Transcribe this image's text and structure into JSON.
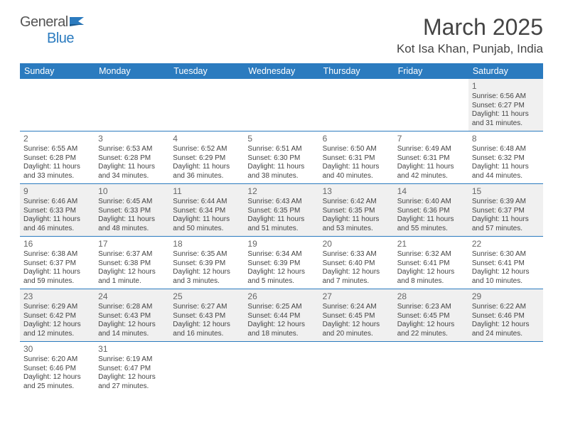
{
  "logo": {
    "textGray": "General",
    "textBlue": "Blue"
  },
  "title": "March 2025",
  "location": "Kot Isa Khan, Punjab, India",
  "headerColor": "#2b7bbf",
  "altRowColor": "#f0f0f0",
  "dayNames": [
    "Sunday",
    "Monday",
    "Tuesday",
    "Wednesday",
    "Thursday",
    "Friday",
    "Saturday"
  ],
  "firstDayIndex": 6,
  "daysInMonth": 31,
  "days": {
    "1": {
      "sunrise": "6:56 AM",
      "sunset": "6:27 PM",
      "daylight": "11 hours and 31 minutes."
    },
    "2": {
      "sunrise": "6:55 AM",
      "sunset": "6:28 PM",
      "daylight": "11 hours and 33 minutes."
    },
    "3": {
      "sunrise": "6:53 AM",
      "sunset": "6:28 PM",
      "daylight": "11 hours and 34 minutes."
    },
    "4": {
      "sunrise": "6:52 AM",
      "sunset": "6:29 PM",
      "daylight": "11 hours and 36 minutes."
    },
    "5": {
      "sunrise": "6:51 AM",
      "sunset": "6:30 PM",
      "daylight": "11 hours and 38 minutes."
    },
    "6": {
      "sunrise": "6:50 AM",
      "sunset": "6:31 PM",
      "daylight": "11 hours and 40 minutes."
    },
    "7": {
      "sunrise": "6:49 AM",
      "sunset": "6:31 PM",
      "daylight": "11 hours and 42 minutes."
    },
    "8": {
      "sunrise": "6:48 AM",
      "sunset": "6:32 PM",
      "daylight": "11 hours and 44 minutes."
    },
    "9": {
      "sunrise": "6:46 AM",
      "sunset": "6:33 PM",
      "daylight": "11 hours and 46 minutes."
    },
    "10": {
      "sunrise": "6:45 AM",
      "sunset": "6:33 PM",
      "daylight": "11 hours and 48 minutes."
    },
    "11": {
      "sunrise": "6:44 AM",
      "sunset": "6:34 PM",
      "daylight": "11 hours and 50 minutes."
    },
    "12": {
      "sunrise": "6:43 AM",
      "sunset": "6:35 PM",
      "daylight": "11 hours and 51 minutes."
    },
    "13": {
      "sunrise": "6:42 AM",
      "sunset": "6:35 PM",
      "daylight": "11 hours and 53 minutes."
    },
    "14": {
      "sunrise": "6:40 AM",
      "sunset": "6:36 PM",
      "daylight": "11 hours and 55 minutes."
    },
    "15": {
      "sunrise": "6:39 AM",
      "sunset": "6:37 PM",
      "daylight": "11 hours and 57 minutes."
    },
    "16": {
      "sunrise": "6:38 AM",
      "sunset": "6:37 PM",
      "daylight": "11 hours and 59 minutes."
    },
    "17": {
      "sunrise": "6:37 AM",
      "sunset": "6:38 PM",
      "daylight": "12 hours and 1 minute."
    },
    "18": {
      "sunrise": "6:35 AM",
      "sunset": "6:39 PM",
      "daylight": "12 hours and 3 minutes."
    },
    "19": {
      "sunrise": "6:34 AM",
      "sunset": "6:39 PM",
      "daylight": "12 hours and 5 minutes."
    },
    "20": {
      "sunrise": "6:33 AM",
      "sunset": "6:40 PM",
      "daylight": "12 hours and 7 minutes."
    },
    "21": {
      "sunrise": "6:32 AM",
      "sunset": "6:41 PM",
      "daylight": "12 hours and 8 minutes."
    },
    "22": {
      "sunrise": "6:30 AM",
      "sunset": "6:41 PM",
      "daylight": "12 hours and 10 minutes."
    },
    "23": {
      "sunrise": "6:29 AM",
      "sunset": "6:42 PM",
      "daylight": "12 hours and 12 minutes."
    },
    "24": {
      "sunrise": "6:28 AM",
      "sunset": "6:43 PM",
      "daylight": "12 hours and 14 minutes."
    },
    "25": {
      "sunrise": "6:27 AM",
      "sunset": "6:43 PM",
      "daylight": "12 hours and 16 minutes."
    },
    "26": {
      "sunrise": "6:25 AM",
      "sunset": "6:44 PM",
      "daylight": "12 hours and 18 minutes."
    },
    "27": {
      "sunrise": "6:24 AM",
      "sunset": "6:45 PM",
      "daylight": "12 hours and 20 minutes."
    },
    "28": {
      "sunrise": "6:23 AM",
      "sunset": "6:45 PM",
      "daylight": "12 hours and 22 minutes."
    },
    "29": {
      "sunrise": "6:22 AM",
      "sunset": "6:46 PM",
      "daylight": "12 hours and 24 minutes."
    },
    "30": {
      "sunrise": "6:20 AM",
      "sunset": "6:46 PM",
      "daylight": "12 hours and 25 minutes."
    },
    "31": {
      "sunrise": "6:19 AM",
      "sunset": "6:47 PM",
      "daylight": "12 hours and 27 minutes."
    }
  },
  "labels": {
    "sunrise": "Sunrise:",
    "sunset": "Sunset:",
    "daylight": "Daylight:"
  }
}
